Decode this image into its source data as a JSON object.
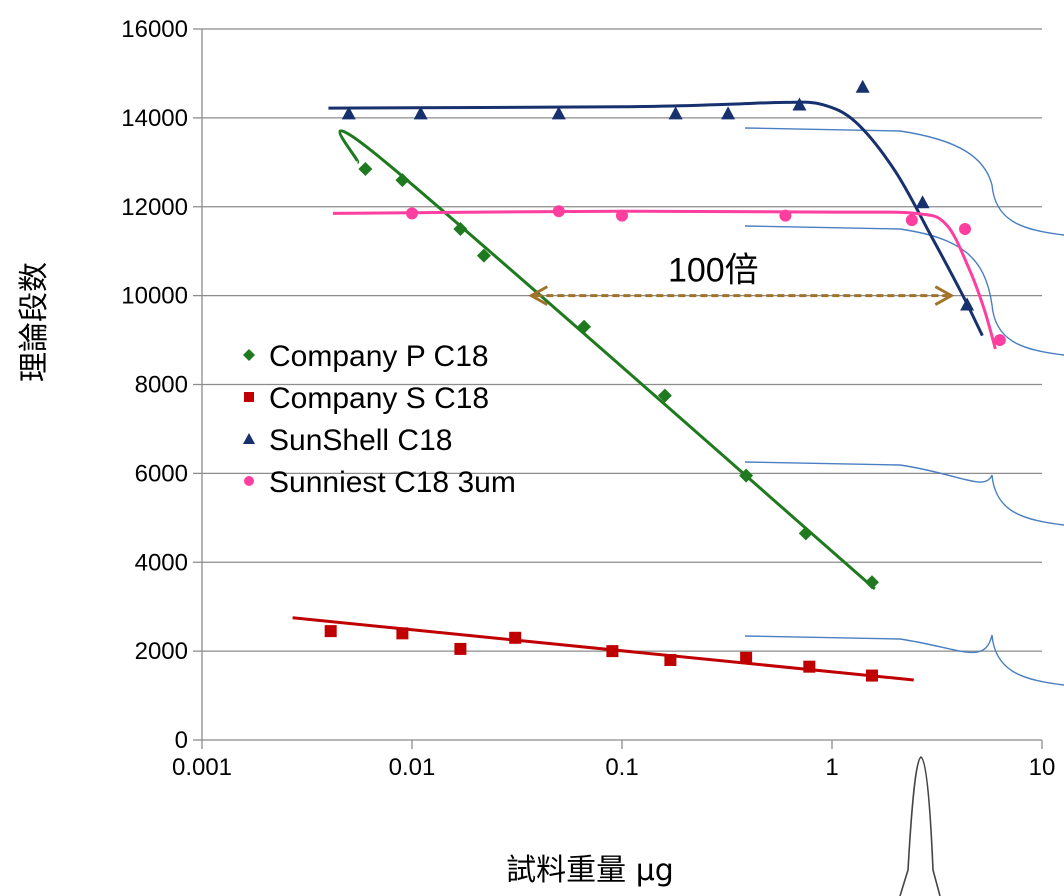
{
  "chart_data": {
    "type": "scatter",
    "x_scale": "log",
    "xlim": [
      0.001,
      10
    ],
    "ylim": [
      0,
      16000
    ],
    "x_ticks": [
      "0.001",
      "0.01",
      "0.1",
      "1",
      "10"
    ],
    "y_ticks": [
      "0",
      "2000",
      "4000",
      "6000",
      "8000",
      "10000",
      "12000",
      "14000",
      "16000"
    ],
    "xlabel": "試料重量 μg",
    "ylabel": "理論段数",
    "grid": "horizontal",
    "legend_position": "center-left",
    "series": [
      {
        "name": "Company P C18",
        "color": "#1f7a1f",
        "marker": "diamond",
        "points": [
          [
            0.006,
            12850
          ],
          [
            0.009,
            12600
          ],
          [
            0.017,
            11500
          ],
          [
            0.022,
            10900
          ],
          [
            0.066,
            9300
          ],
          [
            0.16,
            7750
          ],
          [
            0.39,
            5950
          ],
          [
            0.75,
            4650
          ],
          [
            1.55,
            3550
          ]
        ],
        "trend": [
          [
            0.0055,
            13000
          ],
          [
            0.0075,
            13000
          ],
          [
            1.6,
            3400
          ]
        ]
      },
      {
        "name": "Company S C18",
        "color": "#c00000",
        "marker": "square",
        "points": [
          [
            0.0041,
            2450
          ],
          [
            0.009,
            2400
          ],
          [
            0.017,
            2050
          ],
          [
            0.031,
            2300
          ],
          [
            0.09,
            2000
          ],
          [
            0.17,
            1800
          ],
          [
            0.39,
            1850
          ],
          [
            0.78,
            1650
          ],
          [
            1.55,
            1450
          ]
        ],
        "trend": [
          [
            0.0027,
            2750
          ],
          [
            2.45,
            1350
          ]
        ]
      },
      {
        "name": "SunShell C18",
        "color": "#17306e",
        "marker": "triangle",
        "points": [
          [
            0.005,
            14100
          ],
          [
            0.011,
            14100
          ],
          [
            0.05,
            14100
          ],
          [
            0.18,
            14100
          ],
          [
            0.32,
            14100
          ],
          [
            0.7,
            14300
          ],
          [
            1.4,
            14700
          ],
          [
            2.7,
            12100
          ],
          [
            4.4,
            9800
          ]
        ],
        "trend": [
          [
            0.004,
            14220
          ],
          [
            0.1,
            14250
          ],
          [
            0.3,
            14300
          ],
          [
            0.6,
            14350
          ],
          [
            0.9,
            14300
          ],
          [
            1.3,
            13900
          ],
          [
            2.0,
            12800
          ],
          [
            3.0,
            11300
          ],
          [
            4.2,
            10000
          ],
          [
            5.2,
            9100
          ]
        ]
      },
      {
        "name": "Sunniest C18 3um",
        "color": "#ff3fa0",
        "marker": "circle",
        "points": [
          [
            0.01,
            11850
          ],
          [
            0.05,
            11900
          ],
          [
            0.1,
            11800
          ],
          [
            0.6,
            11800
          ],
          [
            2.4,
            11700
          ],
          [
            4.3,
            11500
          ],
          [
            6.3,
            9000
          ]
        ],
        "trend": [
          [
            0.0042,
            11850
          ],
          [
            0.1,
            11900
          ],
          [
            1.0,
            11880
          ],
          [
            2.5,
            11850
          ],
          [
            3.5,
            11600
          ],
          [
            4.5,
            10600
          ],
          [
            5.3,
            9700
          ],
          [
            6.0,
            8800
          ]
        ]
      }
    ],
    "annotations": [
      {
        "text": "100倍",
        "arrow_from": [
          0.037,
          10000
        ],
        "arrow_to": [
          3.7,
          10000
        ],
        "color": "#a0722a"
      }
    ],
    "inset_color": "#4a7fc1"
  }
}
